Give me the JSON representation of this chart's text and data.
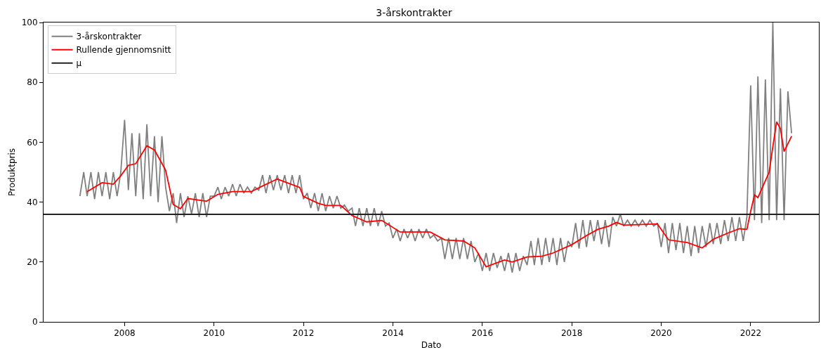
{
  "chart_data": {
    "type": "line",
    "title": "3-årskontrakter",
    "xlabel": "Dato",
    "ylabel": "Produktpris",
    "xlim": [
      "2006-03-10",
      "2023-07-12"
    ],
    "xticks": [
      "2008",
      "2010",
      "2012",
      "2014",
      "2016",
      "2018",
      "2020",
      "2022"
    ],
    "ylim": [
      0,
      100
    ],
    "yticks": [
      0,
      20,
      40,
      60,
      80,
      100
    ],
    "grid": false,
    "legend": "top left",
    "series": [
      {
        "name": "3-årskontrakter",
        "color": "#808080",
        "x": [
          "2007-01",
          "2007-02",
          "2007-03",
          "2007-04",
          "2007-05",
          "2007-06",
          "2007-07",
          "2007-08",
          "2007-09",
          "2007-10",
          "2007-11",
          "2007-12",
          "2008-01",
          "2008-02",
          "2008-03",
          "2008-04",
          "2008-05",
          "2008-06",
          "2008-07",
          "2008-08",
          "2008-09",
          "2008-10",
          "2008-11",
          "2008-12",
          "2009-01",
          "2009-02",
          "2009-03",
          "2009-04",
          "2009-05",
          "2009-06",
          "2009-07",
          "2009-08",
          "2009-09",
          "2009-10",
          "2009-11",
          "2009-12",
          "2010-01",
          "2010-02",
          "2010-03",
          "2010-04",
          "2010-05",
          "2010-06",
          "2010-07",
          "2010-08",
          "2010-09",
          "2010-10",
          "2010-11",
          "2010-12",
          "2011-01",
          "2011-02",
          "2011-03",
          "2011-04",
          "2011-05",
          "2011-06",
          "2011-07",
          "2011-08",
          "2011-09",
          "2011-10",
          "2011-11",
          "2011-12",
          "2012-01",
          "2012-02",
          "2012-03",
          "2012-04",
          "2012-05",
          "2012-06",
          "2012-07",
          "2012-08",
          "2012-09",
          "2012-10",
          "2012-11",
          "2012-12",
          "2013-01",
          "2013-02",
          "2013-03",
          "2013-04",
          "2013-05",
          "2013-06",
          "2013-07",
          "2013-08",
          "2013-09",
          "2013-10",
          "2013-11",
          "2013-12",
          "2014-01",
          "2014-02",
          "2014-03",
          "2014-04",
          "2014-05",
          "2014-06",
          "2014-07",
          "2014-08",
          "2014-09",
          "2014-10",
          "2014-11",
          "2014-12",
          "2015-01",
          "2015-02",
          "2015-03",
          "2015-04",
          "2015-05",
          "2015-06",
          "2015-07",
          "2015-08",
          "2015-09",
          "2015-10",
          "2015-11",
          "2015-12",
          "2016-01",
          "2016-02",
          "2016-03",
          "2016-04",
          "2016-05",
          "2016-06",
          "2016-07",
          "2016-08",
          "2016-09",
          "2016-10",
          "2016-11",
          "2016-12",
          "2017-01",
          "2017-02",
          "2017-03",
          "2017-04",
          "2017-05",
          "2017-06",
          "2017-07",
          "2017-08",
          "2017-09",
          "2017-10",
          "2017-11",
          "2017-12",
          "2018-01",
          "2018-02",
          "2018-03",
          "2018-04",
          "2018-05",
          "2018-06",
          "2018-07",
          "2018-08",
          "2018-09",
          "2018-10",
          "2018-11",
          "2018-12",
          "2019-01",
          "2019-02",
          "2019-03",
          "2019-04",
          "2019-05",
          "2019-06",
          "2019-07",
          "2019-08",
          "2019-09",
          "2019-10",
          "2019-11",
          "2019-12",
          "2020-01",
          "2020-02",
          "2020-03",
          "2020-04",
          "2020-05",
          "2020-06",
          "2020-07",
          "2020-08",
          "2020-09",
          "2020-10",
          "2020-11",
          "2020-12",
          "2021-01",
          "2021-02",
          "2021-03",
          "2021-04",
          "2021-05",
          "2021-06",
          "2021-07",
          "2021-08",
          "2021-09",
          "2021-10",
          "2021-11",
          "2021-12",
          "2022-01",
          "2022-02",
          "2022-03",
          "2022-04",
          "2022-05",
          "2022-06",
          "2022-07",
          "2022-08",
          "2022-09",
          "2022-10",
          "2022-11",
          "2022-12"
        ],
        "values": [
          42,
          50,
          42,
          50,
          41,
          50,
          42,
          50,
          41,
          50,
          42,
          50,
          67.5,
          44,
          63,
          42,
          63,
          41,
          66,
          42,
          62,
          40,
          62,
          45,
          37,
          43,
          33,
          43,
          35,
          42,
          36,
          43,
          35,
          43,
          35,
          42,
          42,
          45,
          41,
          45,
          42,
          46,
          42,
          46,
          43,
          45,
          43,
          45,
          44,
          49,
          43,
          49,
          44,
          49,
          44,
          49,
          43,
          49,
          43,
          49,
          41,
          43,
          38,
          43,
          37,
          43,
          37,
          42,
          38,
          42,
          38,
          39,
          37,
          38,
          32,
          38,
          32,
          38,
          32,
          38,
          32,
          37,
          32,
          33,
          28,
          31,
          27,
          31,
          28,
          31,
          27,
          31,
          28,
          31,
          28,
          29,
          27,
          28,
          21,
          28,
          21,
          28,
          21,
          28,
          21,
          27,
          20,
          23,
          17,
          23,
          17,
          23,
          18,
          22,
          17,
          23,
          16.5,
          23,
          17,
          22,
          19,
          27,
          19,
          28,
          19,
          28,
          20,
          28,
          19,
          28,
          20,
          27,
          25,
          33,
          24.5,
          34,
          25,
          34,
          27,
          34,
          26,
          34,
          25,
          35,
          32,
          36,
          32,
          34,
          32,
          34,
          32,
          34,
          32,
          34,
          32,
          33,
          25,
          33,
          23,
          33,
          24,
          33,
          23,
          32,
          22,
          32,
          23,
          32,
          25,
          33,
          26,
          33,
          26,
          34,
          27,
          35,
          27,
          35,
          27,
          35,
          79,
          34,
          82,
          33,
          81,
          34,
          100,
          34,
          78,
          34,
          77,
          63
        ]
      },
      {
        "name": "Rullende gjennomsnitt",
        "color": "#ff0000",
        "x": [
          "2007-03",
          "2007-07",
          "2007-10",
          "2007-12",
          "2008-02",
          "2008-04",
          "2008-07",
          "2008-09",
          "2008-12",
          "2009-02",
          "2009-04",
          "2009-06",
          "2009-11",
          "2010-02",
          "2010-06",
          "2010-11",
          "2011-02",
          "2011-06",
          "2011-12",
          "2012-01",
          "2012-05",
          "2012-07",
          "2012-11",
          "2013-02",
          "2013-06",
          "2013-10",
          "2014-03",
          "2014-06",
          "2014-11",
          "2015-03",
          "2015-08",
          "2015-11",
          "2016-02",
          "2016-07",
          "2016-09",
          "2017-01",
          "2017-05",
          "2017-08",
          "2018-01",
          "2018-05",
          "2018-08",
          "2018-11",
          "2019-01",
          "2019-03",
          "2019-12",
          "2020-03",
          "2020-08",
          "2020-12",
          "2021-03",
          "2021-07",
          "2021-10",
          "2021-12",
          "2022-01",
          "2022-02",
          "2022-03",
          "2022-06",
          "2022-07",
          "2022-08",
          "2022-09",
          "2022-10",
          "2022-12"
        ],
        "values": [
          43.5,
          46.5,
          46,
          48.8,
          52.3,
          52.8,
          58.8,
          57.4,
          50.7,
          39.2,
          37.8,
          41.2,
          40.3,
          42.6,
          43.5,
          43.5,
          45.4,
          47.7,
          44.9,
          41.9,
          39.6,
          38.9,
          38.9,
          35.5,
          33.4,
          33.9,
          30,
          30,
          30,
          27.4,
          27,
          24.7,
          18.4,
          20.7,
          20,
          21.7,
          21.9,
          23,
          25.8,
          28.8,
          30.9,
          32,
          33.2,
          32.3,
          32.7,
          27.4,
          26.5,
          24.7,
          27.6,
          29.7,
          31.1,
          30.9,
          36.9,
          42.4,
          41.5,
          50,
          58.5,
          66.8,
          64.5,
          56.9,
          62
        ]
      }
    ],
    "ref_lines": [
      {
        "axis": "y",
        "value": 35.9,
        "label": "μ",
        "color": "#222222"
      }
    ]
  }
}
